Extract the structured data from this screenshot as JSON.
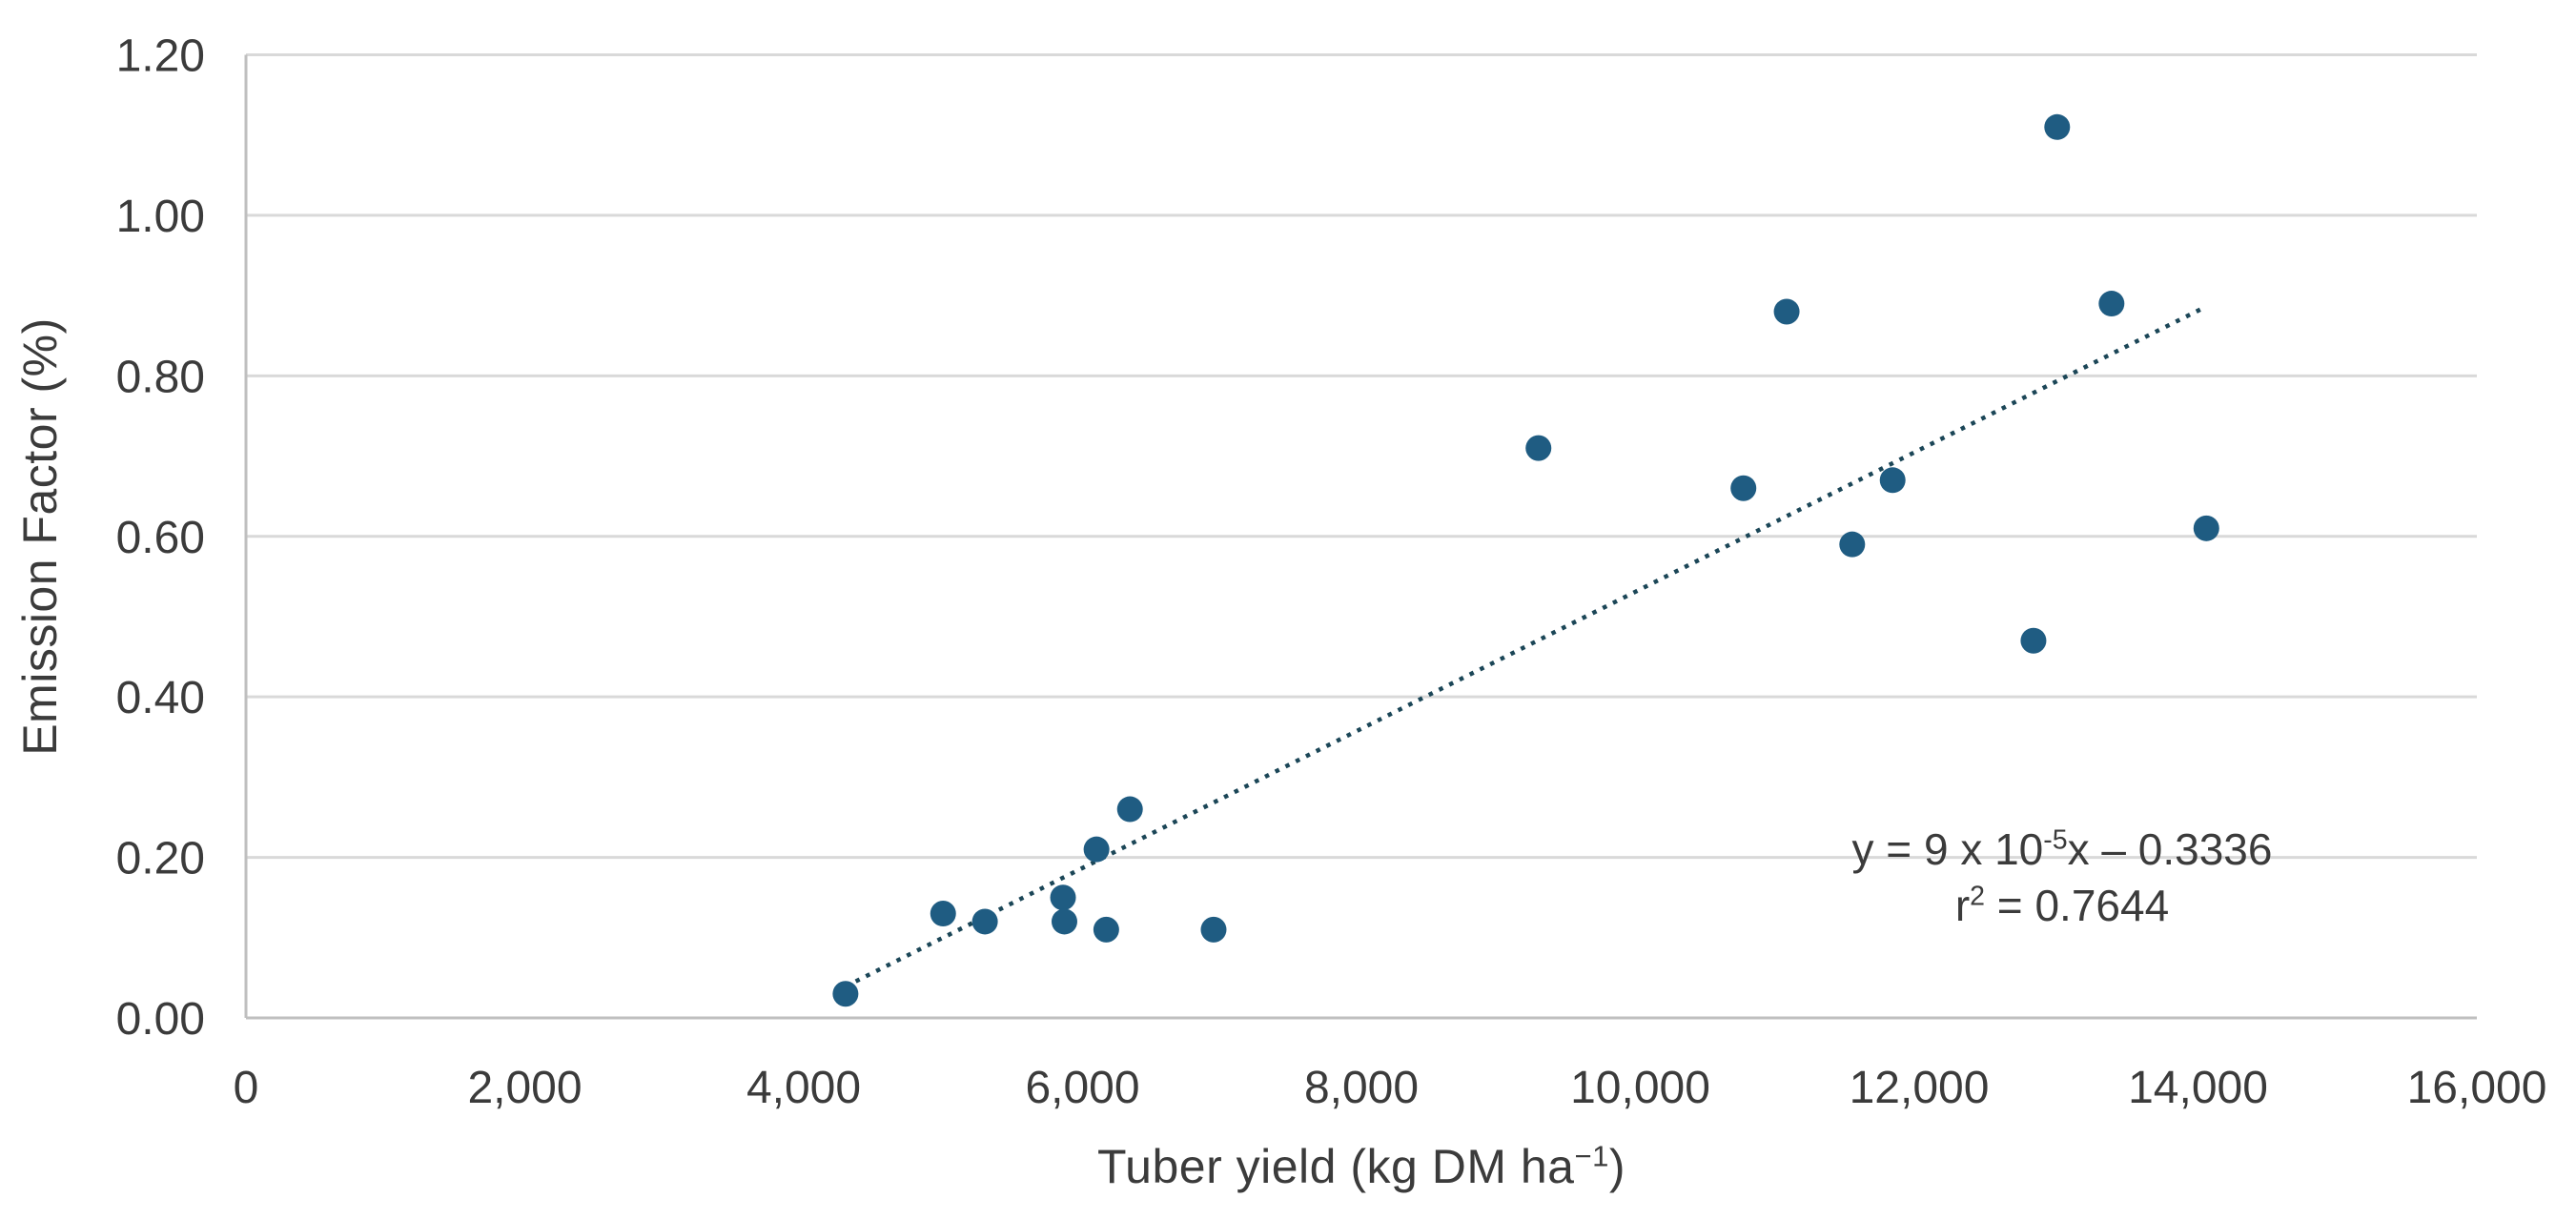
{
  "chart_data": {
    "type": "scatter",
    "title": "",
    "ylabel": "Emission Factor (%)",
    "xlabel_parts": {
      "prefix": "Tuber yield (kg DM ha",
      "sup": "−1",
      "suffix": ")"
    },
    "xlim": [
      0,
      16000
    ],
    "ylim": [
      0.0,
      1.2
    ],
    "x_tick_values": [
      0,
      2000,
      4000,
      6000,
      8000,
      10000,
      12000,
      14000,
      16000
    ],
    "x_tick_labels": [
      "0",
      "2,000",
      "4,000",
      "6,000",
      "8,000",
      "10,000",
      "12,000",
      "14,000",
      "16,000"
    ],
    "y_tick_values": [
      0.0,
      0.2,
      0.4,
      0.6,
      0.8,
      1.0,
      1.2
    ],
    "y_tick_labels": [
      "0.00",
      "0.20",
      "0.40",
      "0.60",
      "0.80",
      "1.00",
      "1.20"
    ],
    "grid": "horizontal",
    "legend": "none",
    "points": [
      {
        "x": 4300,
        "y": 0.03
      },
      {
        "x": 5000,
        "y": 0.13
      },
      {
        "x": 5300,
        "y": 0.12
      },
      {
        "x": 5860,
        "y": 0.15
      },
      {
        "x": 5870,
        "y": 0.12
      },
      {
        "x": 6100,
        "y": 0.21
      },
      {
        "x": 6340,
        "y": 0.26
      },
      {
        "x": 6170,
        "y": 0.11
      },
      {
        "x": 6940,
        "y": 0.11
      },
      {
        "x": 9270,
        "y": 0.71
      },
      {
        "x": 10740,
        "y": 0.66
      },
      {
        "x": 11050,
        "y": 0.88
      },
      {
        "x": 11520,
        "y": 0.59
      },
      {
        "x": 11810,
        "y": 0.67
      },
      {
        "x": 12820,
        "y": 0.47
      },
      {
        "x": 12990,
        "y": 1.11
      },
      {
        "x": 13380,
        "y": 0.89
      },
      {
        "x": 14060,
        "y": 0.61
      }
    ],
    "trendline": {
      "style": "dotted",
      "x_start": 4300,
      "x_end": 14060,
      "slope": 8.68e-05,
      "intercept": -0.334,
      "equation_parts": {
        "prefix": "y = 9 x 10",
        "sup": "-5",
        "suffix": "x – 0.3336"
      },
      "r_squared_parts": {
        "base": "r",
        "sup": "2",
        "suffix": " = 0.7644"
      }
    },
    "colors": {
      "marker": "#1f5c82",
      "trendline": "#1b4657",
      "gridline": "#d9d9d9",
      "axis_line": "#bfbfbf",
      "text": "#3b3b3b"
    }
  }
}
